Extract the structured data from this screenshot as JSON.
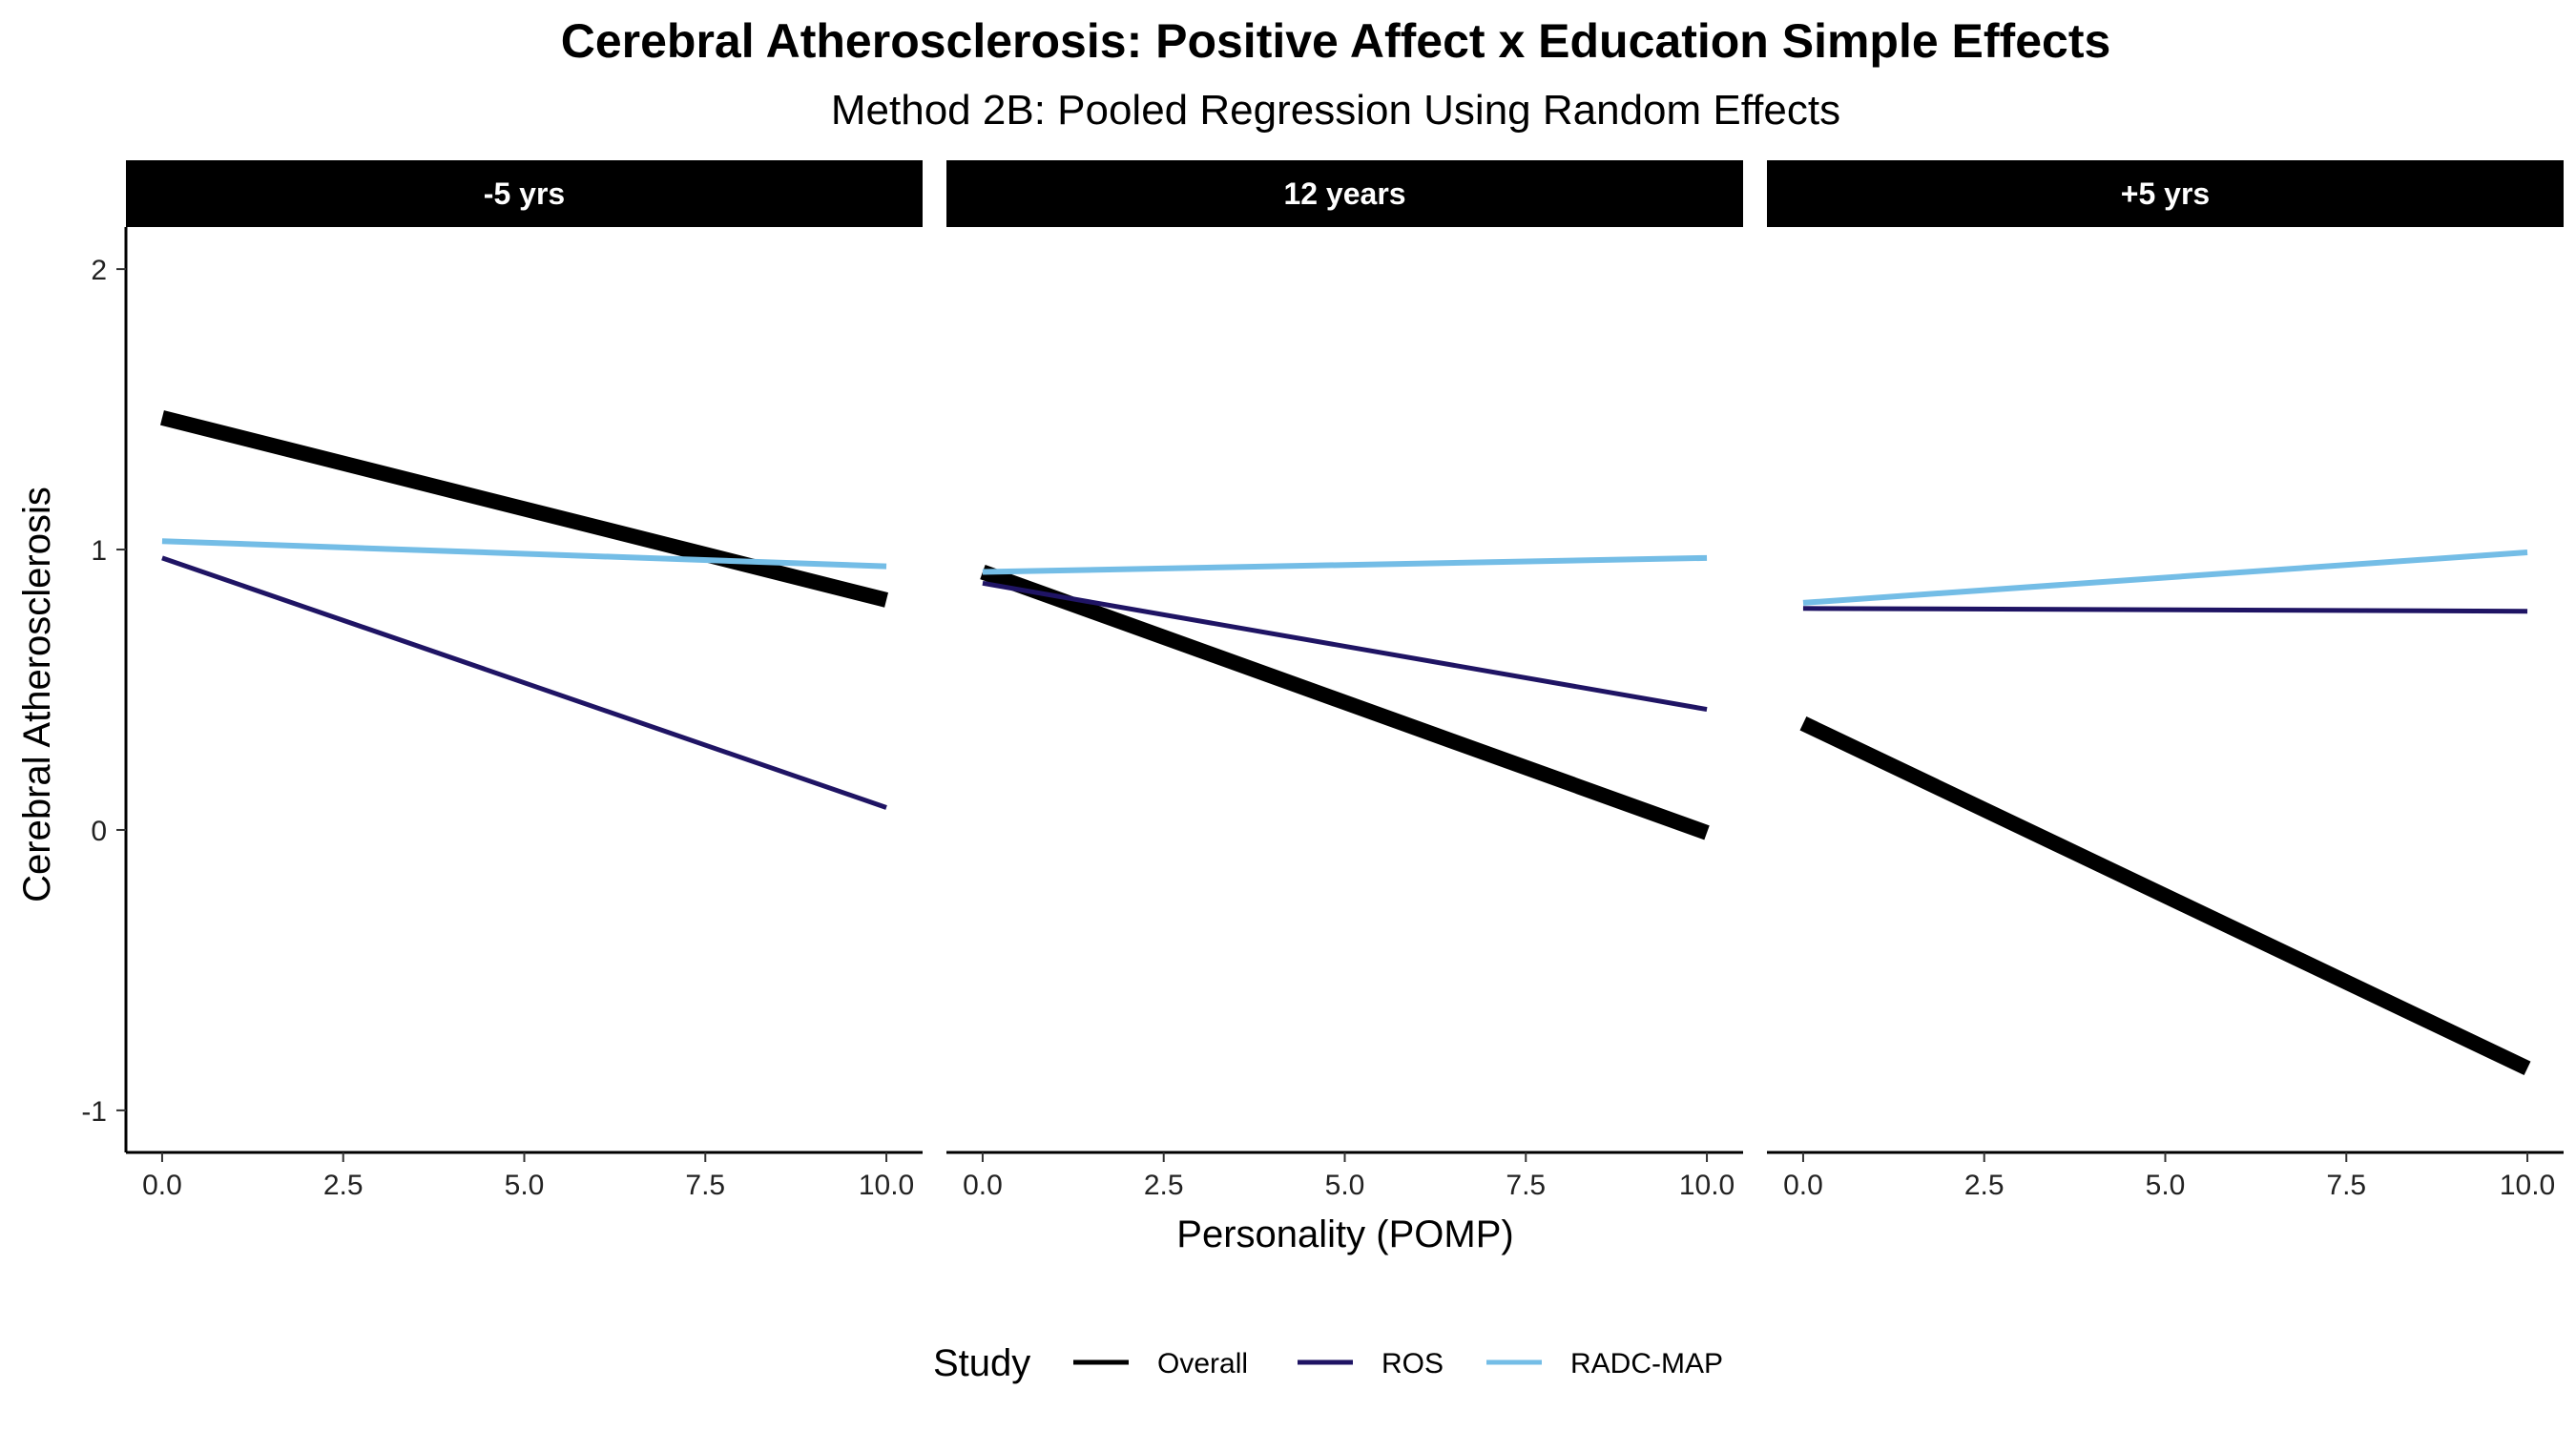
{
  "chart_data": {
    "type": "line",
    "title": "Cerebral Atherosclerosis: Positive Affect x Education Simple Effects",
    "subtitle": "Method 2B: Pooled Regression Using Random Effects",
    "xlabel": "Personality (POMP)",
    "ylabel": "Cerebral Atherosclerosis",
    "xlim": [
      -0.5,
      10.5
    ],
    "ylim": [
      -1.15,
      2.15
    ],
    "x_ticks": [
      0.0,
      2.5,
      5.0,
      7.5,
      10.0
    ],
    "x_tick_labels": [
      "0.0",
      "2.5",
      "5.0",
      "7.5",
      "10.0"
    ],
    "y_ticks": [
      -1,
      0,
      1,
      2
    ],
    "y_tick_labels": [
      "-1",
      "0",
      "1",
      "2"
    ],
    "grid": false,
    "legend": {
      "title": "Study",
      "position": "bottom",
      "entries": [
        "Overall",
        "ROS",
        "RADC-MAP"
      ]
    },
    "series_styles": {
      "Overall": {
        "color": "#000000",
        "width": 16
      },
      "ROS": {
        "color": "#1f1464",
        "width": 5
      },
      "RADC-MAP": {
        "color": "#74bde6",
        "width": 6
      }
    },
    "panels": [
      {
        "label": "-5 yrs",
        "series": [
          {
            "name": "Overall",
            "x": [
              0,
              10
            ],
            "y": [
              1.47,
              0.82
            ]
          },
          {
            "name": "ROS",
            "x": [
              0,
              10
            ],
            "y": [
              0.97,
              0.08
            ]
          },
          {
            "name": "RADC-MAP",
            "x": [
              0,
              10
            ],
            "y": [
              1.03,
              0.94
            ]
          }
        ]
      },
      {
        "label": "12 years",
        "series": [
          {
            "name": "Overall",
            "x": [
              0,
              10
            ],
            "y": [
              0.92,
              -0.01
            ]
          },
          {
            "name": "ROS",
            "x": [
              0,
              10
            ],
            "y": [
              0.88,
              0.43
            ]
          },
          {
            "name": "RADC-MAP",
            "x": [
              0,
              10
            ],
            "y": [
              0.92,
              0.97
            ]
          }
        ]
      },
      {
        "label": "+5 yrs",
        "series": [
          {
            "name": "Overall",
            "x": [
              0,
              10
            ],
            "y": [
              0.38,
              -0.85
            ]
          },
          {
            "name": "ROS",
            "x": [
              0,
              10
            ],
            "y": [
              0.79,
              0.78
            ]
          },
          {
            "name": "RADC-MAP",
            "x": [
              0,
              10
            ],
            "y": [
              0.81,
              0.99
            ]
          }
        ]
      }
    ]
  }
}
